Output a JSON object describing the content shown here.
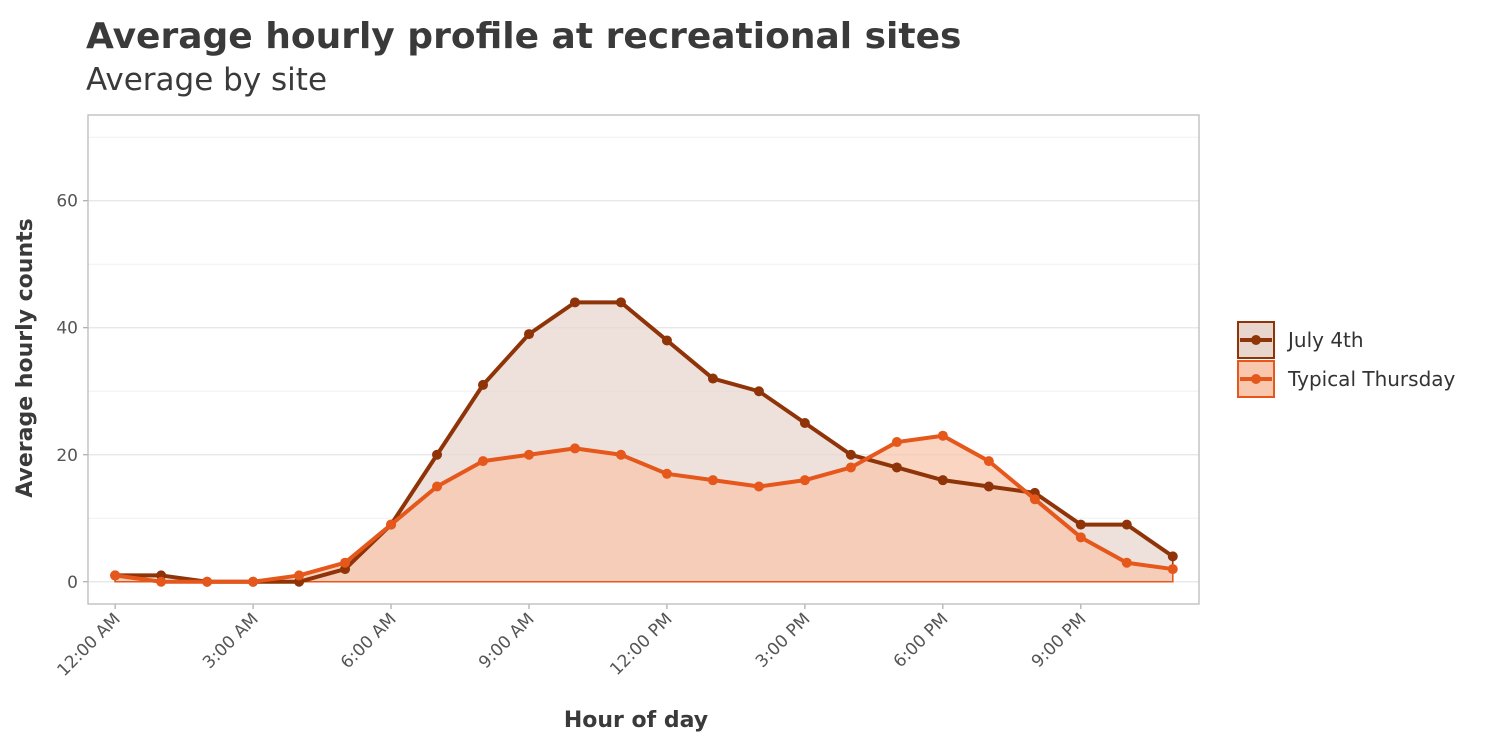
{
  "chart_data": {
    "type": "line",
    "title": "Average hourly profile at recreational sites",
    "subtitle": "Average by site",
    "x_label": "Hour of day",
    "y_label": "Average hourly counts",
    "x": [
      0,
      1,
      2,
      3,
      4,
      5,
      6,
      7,
      8,
      9,
      10,
      11,
      12,
      13,
      14,
      15,
      16,
      17,
      18,
      19,
      20,
      21,
      22,
      23
    ],
    "series": [
      {
        "name": "July 4th",
        "color": "#8f3409",
        "fill": "#e8d6cd",
        "values": [
          1,
          1,
          0,
          0,
          0,
          2,
          9,
          20,
          31,
          39,
          44,
          44,
          38,
          32,
          30,
          25,
          20,
          18,
          16,
          15,
          14,
          9,
          9,
          4
        ]
      },
      {
        "name": "Typical Thursday",
        "color": "#e5571a",
        "fill": "#f8c7ae",
        "values": [
          1,
          0,
          0,
          0,
          1,
          3,
          9,
          15,
          19,
          20,
          21,
          20,
          17,
          16,
          15,
          16,
          18,
          22,
          23,
          19,
          13,
          7,
          3,
          2
        ]
      }
    ],
    "xlim": [
      -0.59,
      23.57
    ],
    "ylim": [
      -3.5,
      73.5
    ],
    "xticks": [
      {
        "value": 0,
        "label": "12:00 AM"
      },
      {
        "value": 3,
        "label": "3:00 AM"
      },
      {
        "value": 6,
        "label": "6:00 AM"
      },
      {
        "value": 9,
        "label": "9:00 AM"
      },
      {
        "value": 12,
        "label": "12:00 PM"
      },
      {
        "value": 15,
        "label": "3:00 PM"
      },
      {
        "value": 18,
        "label": "6:00 PM"
      },
      {
        "value": 21,
        "label": "9:00 PM"
      }
    ],
    "yticks": [
      0,
      20,
      40,
      60
    ],
    "yticks_minor": [
      10,
      30,
      50,
      70
    ],
    "grid": true,
    "legend": "right"
  }
}
